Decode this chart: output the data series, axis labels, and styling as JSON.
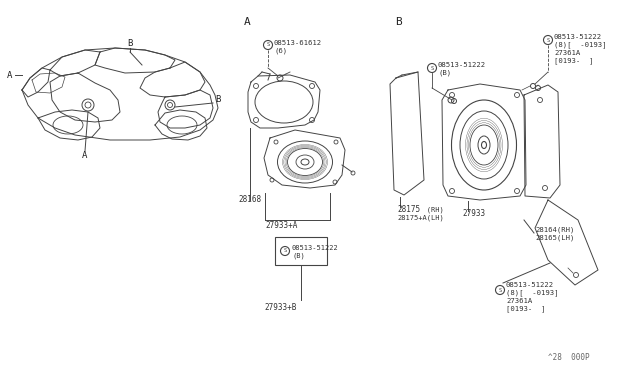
{
  "bg_color": "#ffffff",
  "line_color": "#444444",
  "text_color": "#333333",
  "footer": "^28  000P",
  "parts": {
    "screw_A_top": "08513-61612",
    "screw_A_top2": "(6)",
    "speaker_A": "28168",
    "bracket_A1": "27933+A",
    "screw_A_box": "08513-51222",
    "screw_A_box2": "(B)",
    "bracket_A2": "27933+B",
    "screw_B_upper_right_1": "08513-51222",
    "screw_B_upper_right_2": "(8)[  -0193]",
    "screw_B_upper_right_3": "27361A",
    "screw_B_upper_right_4": "[0193-  ]",
    "screw_B_center": "08513-51222",
    "screw_B_center2": "(B)",
    "cover_B_1": "28175",
    "cover_B_2": "(RH)",
    "cover_B_3": "28175+A(LH)",
    "speaker_B": "27933",
    "bracket_B_1": "28164(RH)",
    "bracket_B_2": "28165(LH)",
    "screw_B_lower_right_1": "08513-51222",
    "screw_B_lower_right_2": "(8)[  -0193]",
    "screw_B_lower_right_3": "27361A",
    "screw_B_lower_right_4": "[0193-  ]"
  }
}
